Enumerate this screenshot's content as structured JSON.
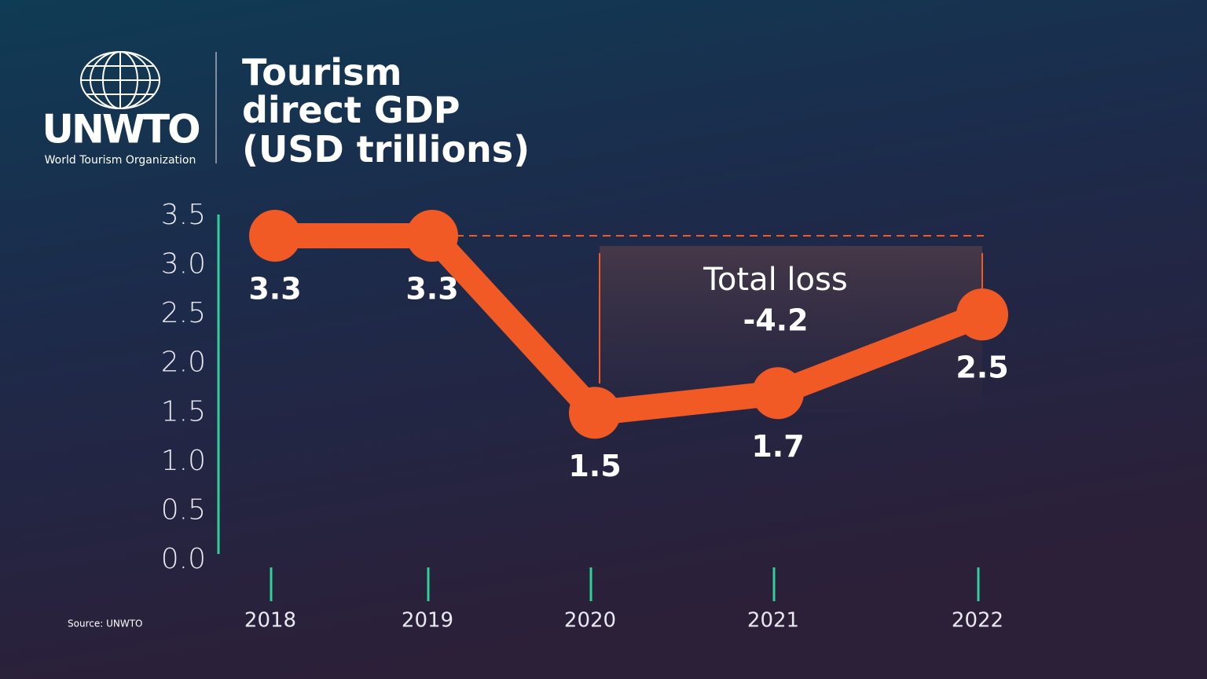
{
  "logo": {
    "name": "UNWTO",
    "subtitle": "World Tourism Organization"
  },
  "chart_data": {
    "type": "line",
    "title": [
      "Tourism",
      "direct GDP",
      "(USD trillions)"
    ],
    "categories": [
      "2018",
      "2019",
      "2020",
      "2021",
      "2022"
    ],
    "values": [
      3.3,
      3.3,
      1.5,
      1.7,
      2.5
    ],
    "color": "#f15a24",
    "ylim": [
      0,
      3.5
    ],
    "yticks": [
      {
        "value": 0,
        "label": "0.0"
      },
      0.5,
      {
        "value": 1,
        "label": "1.0"
      },
      1.5,
      {
        "value": 2,
        "label": "2.0"
      },
      2.5,
      {
        "value": 3,
        "label": "3.0"
      },
      3.5
    ],
    "annotation": {
      "label": "Total loss",
      "value": -4.2
    },
    "source": "Source: UNWTO"
  }
}
